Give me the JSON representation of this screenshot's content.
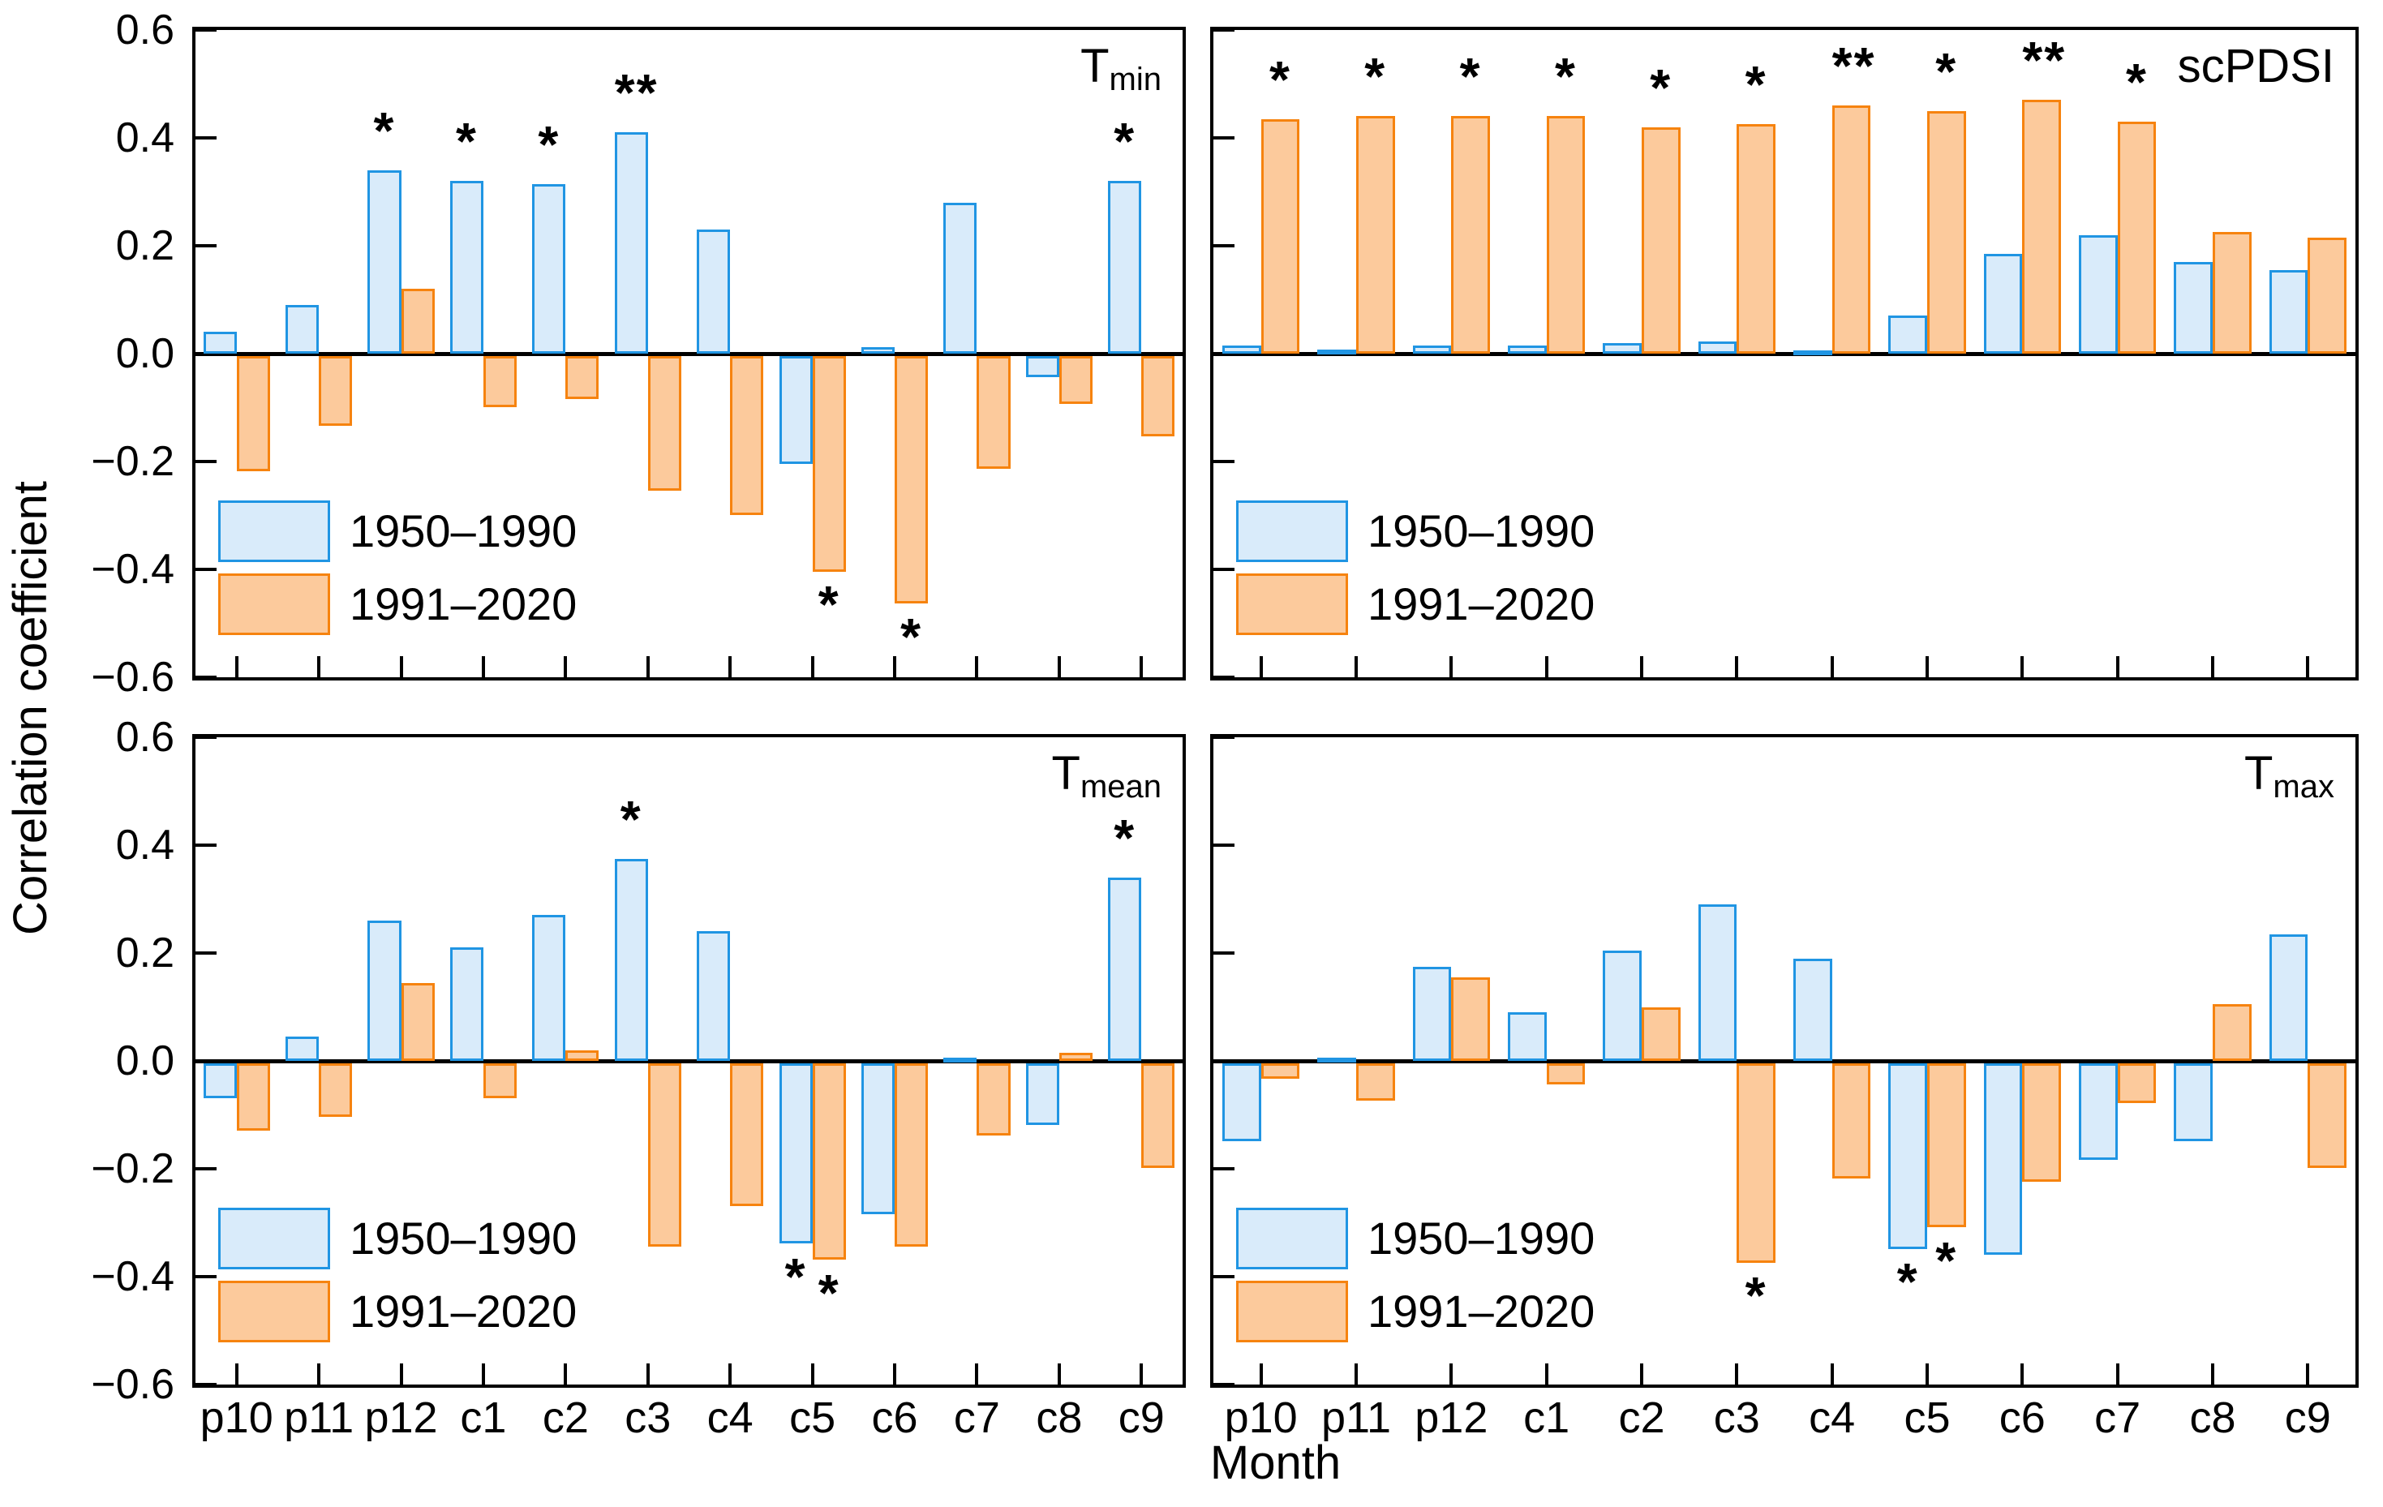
{
  "figure": {
    "ylabel": "Correlation coefficient",
    "xlabel": "Month"
  },
  "legend": {
    "items": [
      {
        "label": "1950–1990",
        "fill": "#d9ebfa",
        "border": "#2095e3"
      },
      {
        "label": "1991–2020",
        "fill": "#fcca9c",
        "border": "#f6830f"
      }
    ]
  },
  "axes": {
    "categories": [
      "p10",
      "p11",
      "p12",
      "c1",
      "c2",
      "c3",
      "c4",
      "c5",
      "c6",
      "c7",
      "c8",
      "c9"
    ],
    "ytick_labels": [
      "0.6",
      "0.4",
      "0.2",
      "0.0",
      "−0.2",
      "−0.4",
      "−0.6"
    ],
    "ytick_values": [
      0.6,
      0.4,
      0.2,
      0.0,
      -0.2,
      -0.4,
      -0.6
    ],
    "ylim": [
      -0.6,
      0.6
    ]
  },
  "chart_data": [
    {
      "type": "bar",
      "panel": "tmin",
      "title_main": "T",
      "title_sub": "min",
      "categories": [
        "p10",
        "p11",
        "p12",
        "c1",
        "c2",
        "c3",
        "c4",
        "c5",
        "c6",
        "c7",
        "c8",
        "c9"
      ],
      "ylim": [
        -0.6,
        0.6
      ],
      "series": [
        {
          "name": "1950–1990",
          "values": [
            0.04,
            0.09,
            0.34,
            0.32,
            0.315,
            0.41,
            0.23,
            -0.2,
            0.012,
            0.28,
            -0.04,
            0.32
          ],
          "sig": [
            "",
            "",
            "*",
            "*",
            "*",
            "**",
            "",
            "",
            "",
            "",
            "",
            "*"
          ]
        },
        {
          "name": "1991–2020",
          "values": [
            -0.215,
            -0.13,
            0.12,
            -0.095,
            -0.08,
            -0.25,
            -0.295,
            -0.4,
            -0.46,
            -0.21,
            -0.09,
            -0.15
          ],
          "sig": [
            "",
            "",
            "",
            "",
            "",
            "",
            "",
            "*",
            "*",
            "",
            "",
            ""
          ]
        }
      ]
    },
    {
      "type": "bar",
      "panel": "scpdsi",
      "title_main": "scPDSI",
      "title_sub": "",
      "categories": [
        "p10",
        "p11",
        "p12",
        "c1",
        "c2",
        "c3",
        "c4",
        "c5",
        "c6",
        "c7",
        "c8",
        "c9"
      ],
      "ylim": [
        -0.6,
        0.6
      ],
      "series": [
        {
          "name": "1950–1990",
          "values": [
            0.015,
            0.008,
            0.015,
            0.015,
            0.02,
            0.022,
            0.005,
            0.07,
            0.185,
            0.22,
            0.17,
            0.155
          ],
          "sig": [
            "",
            "",
            "",
            "",
            "",
            "",
            "",
            "",
            "",
            "",
            "",
            ""
          ]
        },
        {
          "name": "1991–2020",
          "values": [
            0.435,
            0.44,
            0.44,
            0.44,
            0.42,
            0.425,
            0.46,
            0.45,
            0.47,
            0.43,
            0.225,
            0.215
          ],
          "sig": [
            "*",
            "*",
            "*",
            "*",
            "*",
            "*",
            "**",
            "*",
            "**",
            "*",
            "",
            ""
          ]
        }
      ]
    },
    {
      "type": "bar",
      "panel": "tmean",
      "title_main": "T",
      "title_sub": "mean",
      "categories": [
        "p10",
        "p11",
        "p12",
        "c1",
        "c2",
        "c3",
        "c4",
        "c5",
        "c6",
        "c7",
        "c8",
        "c9"
      ],
      "ylim": [
        -0.6,
        0.6
      ],
      "series": [
        {
          "name": "1950–1990",
          "values": [
            -0.065,
            0.045,
            0.26,
            0.21,
            0.27,
            0.375,
            0.24,
            -0.335,
            -0.28,
            0.005,
            -0.115,
            0.34
          ],
          "sig": [
            "",
            "",
            "",
            "",
            "",
            "*",
            "",
            "*",
            "",
            "",
            "",
            "*"
          ]
        },
        {
          "name": "1991–2020",
          "values": [
            -0.125,
            -0.1,
            0.145,
            -0.065,
            0.02,
            -0.34,
            -0.265,
            -0.365,
            -0.34,
            -0.135,
            0.015,
            -0.195
          ],
          "sig": [
            "",
            "",
            "",
            "",
            "",
            "",
            "",
            "*",
            "",
            "",
            "",
            ""
          ]
        }
      ]
    },
    {
      "type": "bar",
      "panel": "tmax",
      "title_main": "T",
      "title_sub": "max",
      "categories": [
        "p10",
        "p11",
        "p12",
        "c1",
        "c2",
        "c3",
        "c4",
        "c5",
        "c6",
        "c7",
        "c8",
        "c9"
      ],
      "ylim": [
        -0.6,
        0.6
      ],
      "series": [
        {
          "name": "1950–1990",
          "values": [
            -0.145,
            0.005,
            0.175,
            0.09,
            0.205,
            0.29,
            0.19,
            -0.345,
            -0.355,
            -0.18,
            -0.145,
            0.235
          ],
          "sig": [
            "",
            "",
            "",
            "",
            "",
            "",
            "",
            "*",
            "",
            "",
            "",
            ""
          ]
        },
        {
          "name": "1991–2020",
          "values": [
            -0.03,
            -0.07,
            0.155,
            -0.04,
            0.1,
            -0.37,
            -0.215,
            -0.305,
            -0.22,
            -0.075,
            0.105,
            -0.195
          ],
          "sig": [
            "",
            "",
            "",
            "",
            "",
            "*",
            "",
            "*",
            "",
            "",
            "",
            ""
          ]
        }
      ]
    }
  ]
}
